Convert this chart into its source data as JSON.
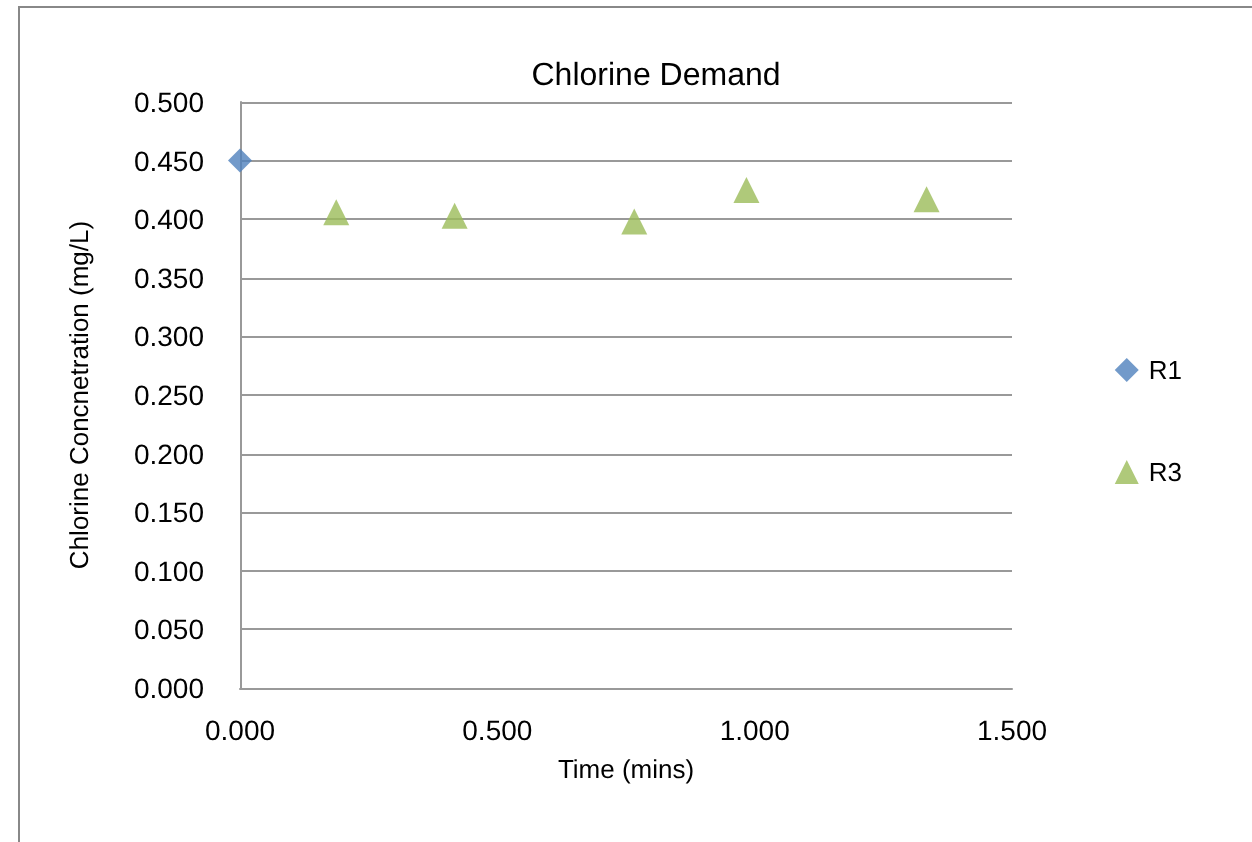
{
  "chart_data": {
    "type": "scatter",
    "title": "Chlorine Demand",
    "xlabel": "Time (mins)",
    "ylabel": "Chlorine Concnetration (mg/L)",
    "series": [
      {
        "name": "R1",
        "color": "#4f81bd",
        "marker": "diamond",
        "x": [
          0.0
        ],
        "values": [
          0.45
        ]
      },
      {
        "name": "R3",
        "color": "#9bbb59",
        "marker": "triangle",
        "x": [
          0.187,
          0.417,
          0.766,
          0.984,
          1.334
        ],
        "values": [
          0.406,
          0.403,
          0.398,
          0.425,
          0.417
        ]
      }
    ],
    "xlim": [
      0,
      1.5
    ],
    "xticks": [
      {
        "value": 0,
        "label": "0.000"
      },
      {
        "value": 0.5,
        "label": "0.500"
      },
      {
        "value": 1,
        "label": "1.000"
      },
      {
        "value": 1.5,
        "label": "1.500"
      }
    ],
    "ylim": [
      0,
      0.5
    ],
    "yticks": [
      {
        "value": 0,
        "label": "0.000"
      },
      {
        "value": 0.05,
        "label": "0.050"
      },
      {
        "value": 0.1,
        "label": "0.100"
      },
      {
        "value": 0.15,
        "label": "0.150"
      },
      {
        "value": 0.2,
        "label": "0.200"
      },
      {
        "value": 0.25,
        "label": "0.250"
      },
      {
        "value": 0.3,
        "label": "0.300"
      },
      {
        "value": 0.35,
        "label": "0.350"
      },
      {
        "value": 0.4,
        "label": "0.400"
      },
      {
        "value": 0.45,
        "label": "0.450"
      },
      {
        "value": 0.5,
        "label": "0.500"
      }
    ],
    "grid": "y",
    "legend": "right"
  }
}
